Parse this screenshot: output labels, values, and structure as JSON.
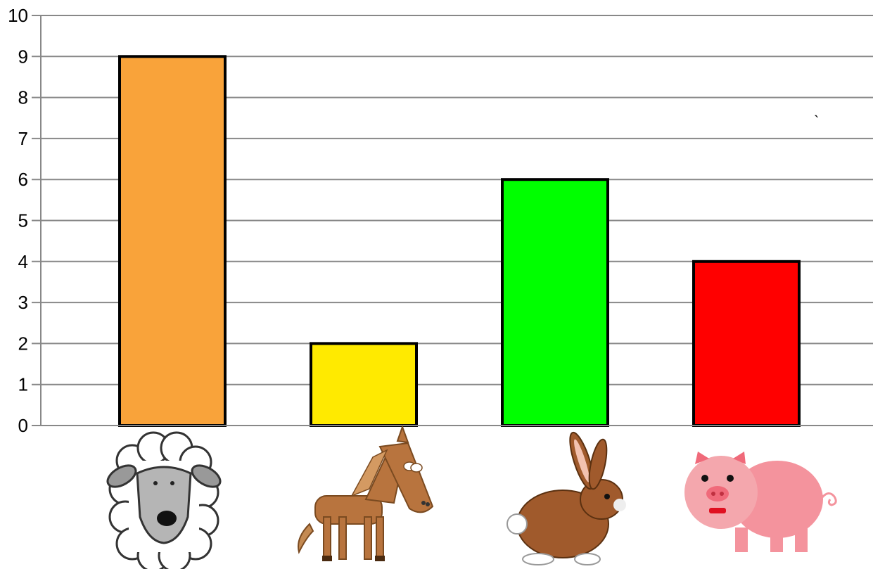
{
  "chart_data": {
    "type": "bar",
    "categories": [
      "sheep",
      "horse",
      "rabbit",
      "pig"
    ],
    "category_icons": [
      "sheep-icon",
      "horse-icon",
      "rabbit-icon",
      "pig-icon"
    ],
    "values": [
      9,
      2,
      6,
      4
    ],
    "bar_colors": [
      "#F9A33A",
      "#FFEA00",
      "#00FF00",
      "#FF0000"
    ],
    "title": "",
    "xlabel": "",
    "ylabel": "",
    "ylim": [
      0,
      10
    ],
    "yticks": [
      "0",
      "1",
      "2",
      "3",
      "4",
      "5",
      "6",
      "7",
      "8",
      "9",
      "10"
    ],
    "grid": true,
    "legend": "none"
  },
  "stray_mark": "`"
}
